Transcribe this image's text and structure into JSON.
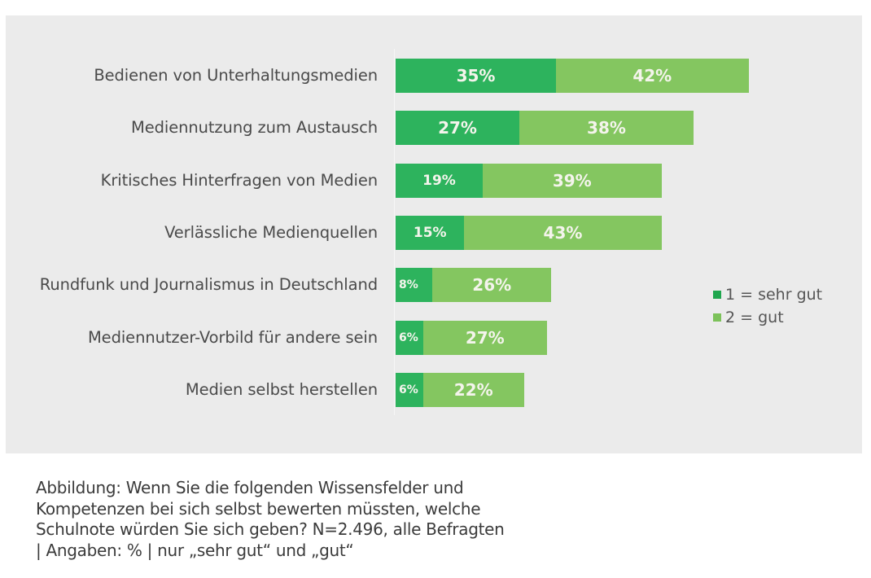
{
  "chart_data": {
    "type": "bar",
    "orientation": "horizontal",
    "stacked": true,
    "title": "",
    "xlabel": "",
    "ylabel": "",
    "unit": "%",
    "categories": [
      "Bedienen von Unterhaltungsmedien",
      "Mediennutzung zum Austausch",
      "Kritisches Hinterfragen von Medien",
      "Verlässliche Medienquellen",
      "Rundfunk und Journalismus in Deutschland",
      "Mediennutzer-Vorbild für andere sein",
      "Medien selbst herstellen"
    ],
    "series": [
      {
        "name": "1 = sehr gut",
        "color": "#2db35d",
        "values": [
          35,
          27,
          19,
          15,
          8,
          6,
          6
        ]
      },
      {
        "name": "2 = gut",
        "color": "#84c660",
        "values": [
          42,
          38,
          39,
          43,
          26,
          27,
          22
        ]
      }
    ],
    "data_labels": [
      [
        "35%",
        "42%"
      ],
      [
        "27%",
        "38%"
      ],
      [
        "19%",
        "39%"
      ],
      [
        "15%",
        "43%"
      ],
      [
        "8%",
        "26%"
      ],
      [
        "6%",
        "27%"
      ],
      [
        "6%",
        "22%"
      ]
    ],
    "xlim": [
      0,
      100
    ],
    "grid": false,
    "legend_position": "right",
    "legend": [
      {
        "label": "1 = sehr gut",
        "color": "#1fa64e"
      },
      {
        "label": "2 = gut",
        "color": "#7cc25a"
      }
    ]
  },
  "caption": {
    "lines": [
      "Abbildung: Wenn Sie die folgenden Wissensfelder und",
      "Kompetenzen bei sich selbst bewerten müssten, welche",
      "Schulnote würden Sie sich geben? N=2.496, alle Befragten",
      "| Angaben: % | nur „sehr gut“ und „gut“"
    ]
  }
}
